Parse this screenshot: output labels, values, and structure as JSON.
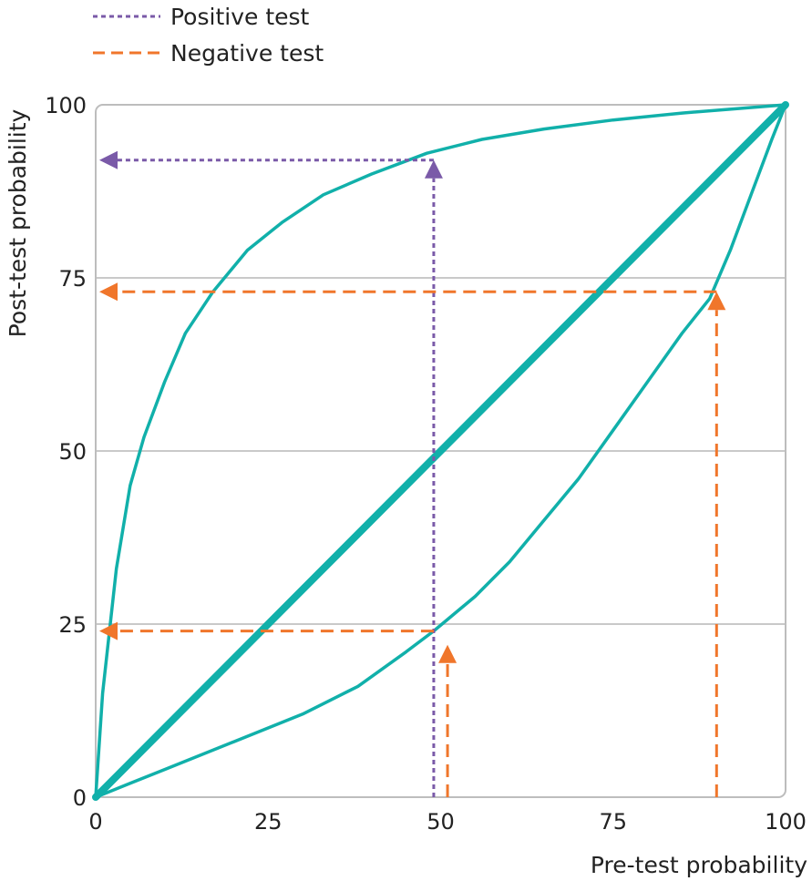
{
  "chart_data": {
    "type": "line",
    "title": "",
    "xlabel": "Pre-test probability",
    "ylabel": "Post-test probability",
    "xlim": [
      0,
      100
    ],
    "ylim": [
      0,
      100
    ],
    "xticks": [
      "0",
      "25",
      "50",
      "75",
      "100"
    ],
    "yticks": [
      "0",
      "25",
      "50",
      "75",
      "100"
    ],
    "grid": "horizontal",
    "legend": {
      "placement": "top-left",
      "entries": [
        {
          "label": "Positive test",
          "style": "dotted",
          "color": "#7a5aa8"
        },
        {
          "label": "Negative test",
          "style": "dashed",
          "color": "#f0762b"
        }
      ]
    },
    "curve_color": "#11b0aa",
    "series": [
      {
        "points": [
          [
            0,
            0
          ],
          [
            1,
            15
          ],
          [
            3,
            33
          ],
          [
            5,
            45
          ],
          [
            7,
            52
          ],
          [
            10,
            60
          ],
          [
            13,
            67
          ],
          [
            17,
            73
          ],
          [
            22,
            79
          ],
          [
            27,
            83
          ],
          [
            33,
            87
          ],
          [
            40,
            90
          ],
          [
            48,
            93
          ],
          [
            56,
            95
          ],
          [
            65,
            96.5
          ],
          [
            75,
            97.8
          ],
          [
            85,
            98.8
          ],
          [
            100,
            100
          ]
        ]
      },
      {
        "points": [
          [
            0,
            0
          ],
          [
            100,
            100
          ]
        ]
      },
      {
        "points": [
          [
            0,
            0
          ],
          [
            5,
            2
          ],
          [
            10,
            4
          ],
          [
            20,
            8
          ],
          [
            30,
            12
          ],
          [
            38,
            16
          ],
          [
            45,
            21
          ],
          [
            49,
            24
          ],
          [
            55,
            29
          ],
          [
            60,
            34
          ],
          [
            65,
            40
          ],
          [
            70,
            46
          ],
          [
            75,
            53
          ],
          [
            80,
            60
          ],
          [
            85,
            67
          ],
          [
            89,
            72
          ],
          [
            92,
            79
          ],
          [
            95,
            87
          ],
          [
            98,
            95
          ],
          [
            100,
            100
          ]
        ]
      }
    ],
    "annotations": [
      {
        "test": "positive",
        "pre": 49,
        "post": 92
      },
      {
        "test": "negative",
        "pre": 90,
        "post": 73
      },
      {
        "test": "negative",
        "pre": 51,
        "post": 24
      }
    ]
  }
}
